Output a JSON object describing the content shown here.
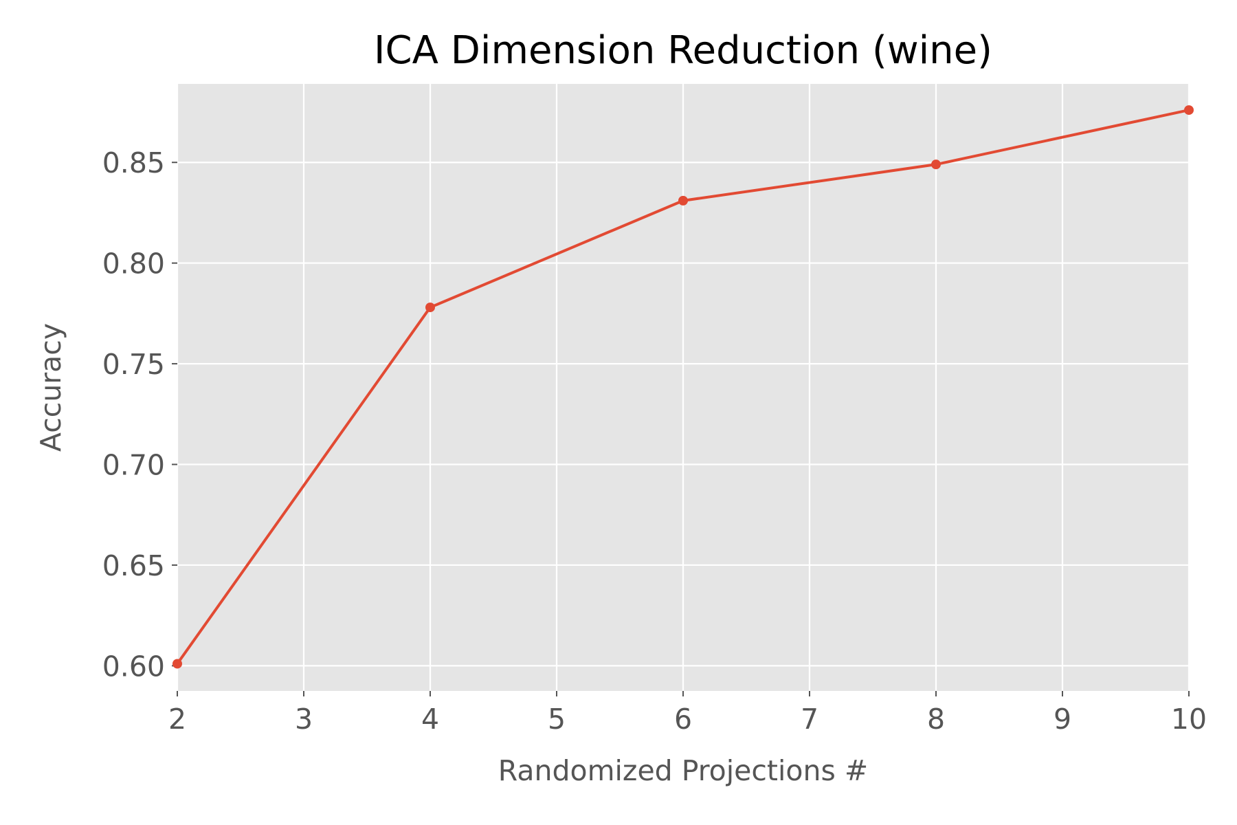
{
  "chart_data": {
    "type": "line",
    "title": "ICA Dimension Reduction (wine)",
    "xlabel": "Randomized Projections #",
    "ylabel": "Accuracy",
    "xlim": [
      2,
      10
    ],
    "ylim": [
      0.5875,
      0.889
    ],
    "xticks": [
      2,
      3,
      4,
      5,
      6,
      7,
      8,
      9,
      10
    ],
    "yticks": [
      0.6,
      0.65,
      0.7,
      0.75,
      0.8,
      0.85
    ],
    "ytick_labels": [
      "0.60",
      "0.65",
      "0.70",
      "0.75",
      "0.80",
      "0.85"
    ],
    "grid": true,
    "series": [
      {
        "name": "accuracy",
        "x": [
          2,
          4,
          6,
          8,
          10
        ],
        "y": [
          0.601,
          0.778,
          0.831,
          0.849,
          0.876
        ],
        "color": "#E24A33"
      }
    ],
    "colors": {
      "plot_background": "#E5E5E5",
      "grid": "#FFFFFF",
      "text": "#555555",
      "title": "#000000"
    }
  }
}
